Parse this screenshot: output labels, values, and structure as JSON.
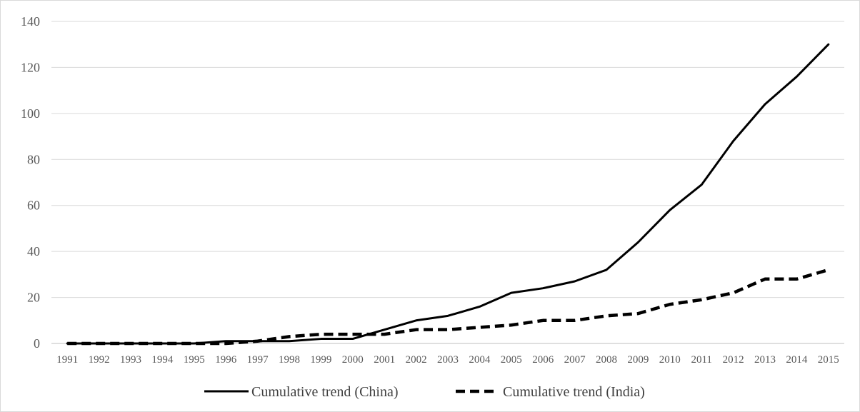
{
  "chart_data": {
    "type": "line",
    "title": "",
    "xlabel": "",
    "ylabel": "",
    "categories": [
      "1991",
      "1992",
      "1993",
      "1994",
      "1995",
      "1996",
      "1997",
      "1998",
      "1999",
      "2000",
      "2001",
      "2002",
      "2003",
      "2004",
      "2005",
      "2006",
      "2007",
      "2008",
      "2009",
      "2010",
      "2011",
      "2012",
      "2013",
      "2014",
      "2015"
    ],
    "y_ticks": [
      0,
      20,
      40,
      60,
      80,
      100,
      120,
      140
    ],
    "ylim": [
      0,
      140
    ],
    "grid": "horizontal",
    "legend_position": "bottom",
    "series": [
      {
        "name": "Cumulative trend (China)",
        "style": "solid",
        "color": "#000000",
        "values": [
          0,
          0,
          0,
          0,
          0,
          1,
          1,
          1,
          2,
          2,
          6,
          10,
          12,
          16,
          22,
          24,
          27,
          32,
          44,
          58,
          69,
          88,
          104,
          116,
          130
        ]
      },
      {
        "name": "Cumulative trend (India)",
        "style": "dashed",
        "color": "#000000",
        "values": [
          0,
          0,
          0,
          0,
          0,
          0,
          1,
          3,
          4,
          4,
          4,
          6,
          6,
          7,
          8,
          10,
          10,
          12,
          13,
          17,
          19,
          22,
          28,
          28,
          32
        ]
      }
    ]
  }
}
